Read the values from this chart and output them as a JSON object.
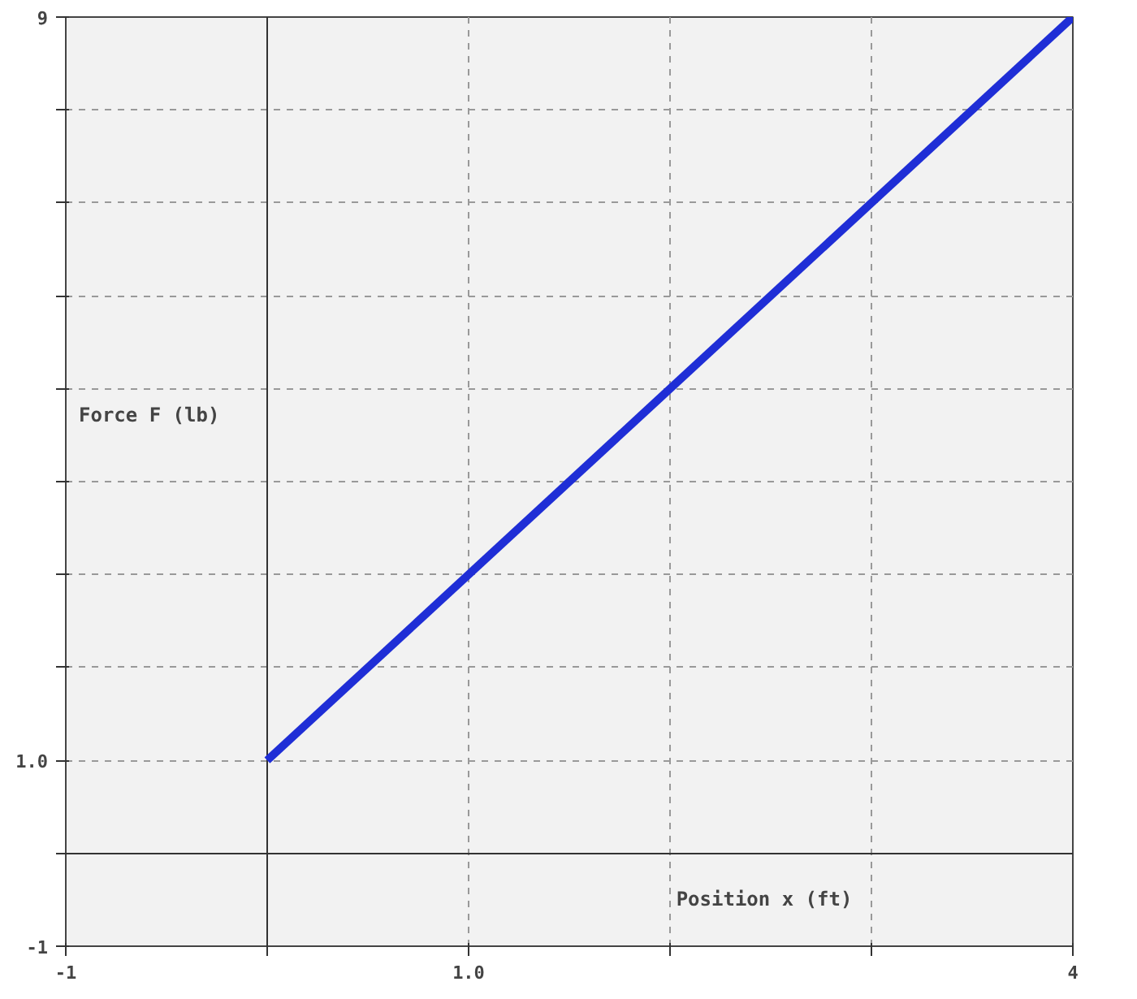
{
  "chart_data": {
    "type": "line",
    "xlabel": "Position x (ft)",
    "ylabel": "Force F (lb)",
    "x": [
      0,
      4
    ],
    "series": [
      {
        "color": "#1f2ed6",
        "values": [
          1,
          9
        ]
      }
    ],
    "xlim": [
      -1,
      4
    ],
    "ylim": [
      -1,
      9
    ],
    "xticks": [
      -1,
      {
        "value": 0,
        "label": null
      },
      {
        "value": 1,
        "label": "1.0"
      },
      {
        "value": 2,
        "label": null
      },
      {
        "value": 3,
        "label": null
      },
      4
    ],
    "yticks": [
      -1,
      {
        "value": 0,
        "label": null
      },
      {
        "value": 1,
        "label": "1.0"
      },
      {
        "value": 2,
        "label": null
      },
      {
        "value": 3,
        "label": null
      },
      {
        "value": 4,
        "label": null
      },
      {
        "value": 5,
        "label": null
      },
      {
        "value": 6,
        "label": null
      },
      {
        "value": 7,
        "label": null
      },
      {
        "value": 8,
        "label": null
      },
      9
    ],
    "grid": true,
    "marker": "none",
    "line_style": "solid"
  }
}
